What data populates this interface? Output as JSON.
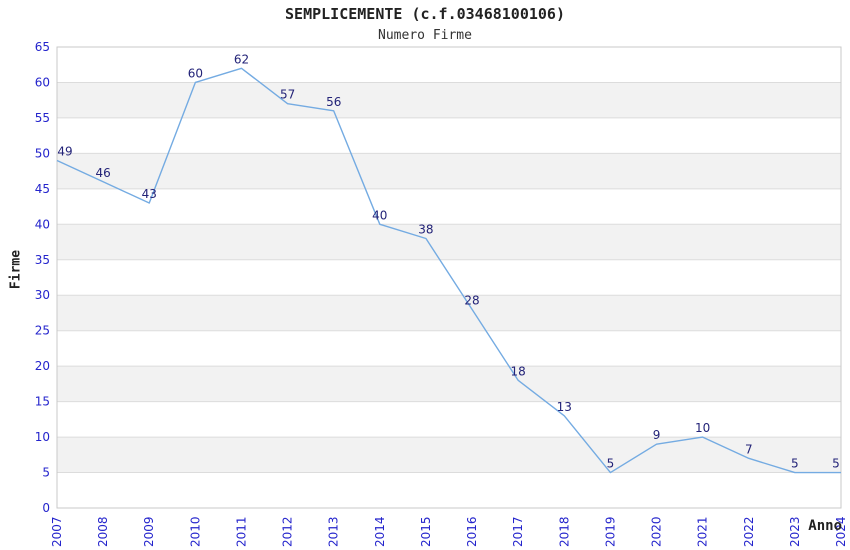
{
  "page": {
    "title": "SEMPLICEMENTE (c.f.03468100106)",
    "subtitle": "Numero Firme"
  },
  "chart_data": {
    "type": "line",
    "title": "SEMPLICEMENTE (c.f.03468100106)",
    "subtitle": "Numero Firme",
    "xlabel": "Anno",
    "ylabel": "Firme",
    "categories": [
      "2007",
      "2008",
      "2009",
      "2010",
      "2011",
      "2012",
      "2013",
      "2014",
      "2015",
      "2016",
      "2017",
      "2018",
      "2019",
      "2020",
      "2021",
      "2022",
      "2023",
      "2024"
    ],
    "values": [
      49,
      46,
      43,
      60,
      62,
      57,
      56,
      40,
      38,
      28,
      18,
      13,
      5,
      9,
      10,
      7,
      5,
      5
    ],
    "ylim": [
      0,
      65
    ],
    "ytick_step": 5,
    "legend": "none",
    "grid": "horizontal",
    "alternating_row_bands": true,
    "x_tick_rotation": -90,
    "colors": {
      "line": "#74abe2",
      "tick_label": "#2424cc",
      "data_label": "#232378",
      "band": "#f2f2f2",
      "gridline": "#dcdcdc",
      "plot_border": "#c9c9c9",
      "text": "#222222"
    }
  }
}
